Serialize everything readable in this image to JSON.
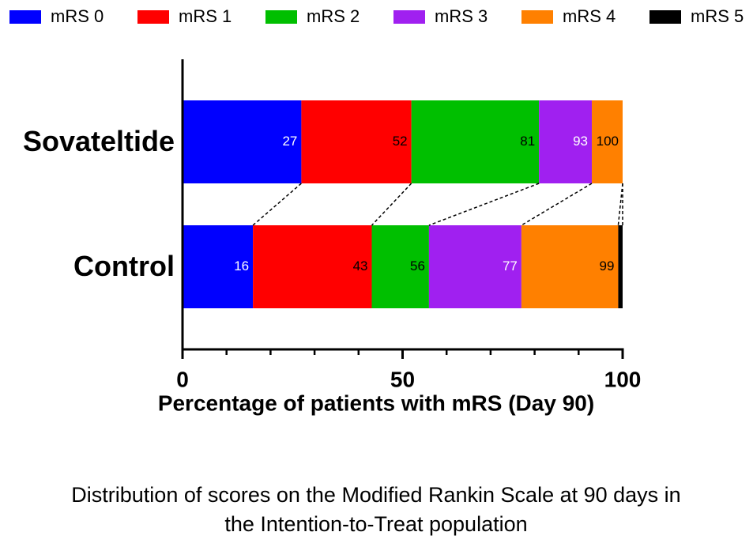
{
  "chart_data": {
    "type": "stacked-barh",
    "xlabel": "Percentage of patients with mRS (Day 90)",
    "caption": [
      "Distribution of scores on the Modified Rankin Scale at 90 days in",
      "the Intention-to-Treat population"
    ],
    "categories": [
      "Sovateltide",
      "Control"
    ],
    "series": [
      {
        "name": "mRS 0",
        "color": "#0000ff",
        "label_color": "#ffffff",
        "values": [
          27,
          16
        ],
        "cumulative_labels": [
          "27",
          "16"
        ]
      },
      {
        "name": "mRS 1",
        "color": "#ff0000",
        "label_color": "#000000",
        "values": [
          25,
          27
        ],
        "cumulative_labels": [
          "52",
          "43"
        ]
      },
      {
        "name": "mRS 2",
        "color": "#00bf00",
        "label_color": "#000000",
        "values": [
          29,
          13
        ],
        "cumulative_labels": [
          "81",
          "56"
        ]
      },
      {
        "name": "mRS 3",
        "color": "#a020f0",
        "label_color": "#ffffff",
        "values": [
          12,
          21
        ],
        "cumulative_labels": [
          "93",
          "77"
        ]
      },
      {
        "name": "mRS 4",
        "color": "#ff8000",
        "label_color": "#000000",
        "values": [
          7,
          22
        ],
        "cumulative_labels": [
          "100",
          "99"
        ]
      },
      {
        "name": "mRS 5",
        "color": "#000000",
        "label_color": "#ffffff",
        "values": [
          0,
          1
        ],
        "cumulative_labels": [
          null,
          null
        ]
      }
    ],
    "xlim": [
      0,
      100
    ],
    "xticks": [
      0,
      50,
      100
    ],
    "xminorticks": [
      10,
      20,
      30,
      40,
      60,
      70,
      80,
      90
    ],
    "legend": "top",
    "connectors": true
  }
}
